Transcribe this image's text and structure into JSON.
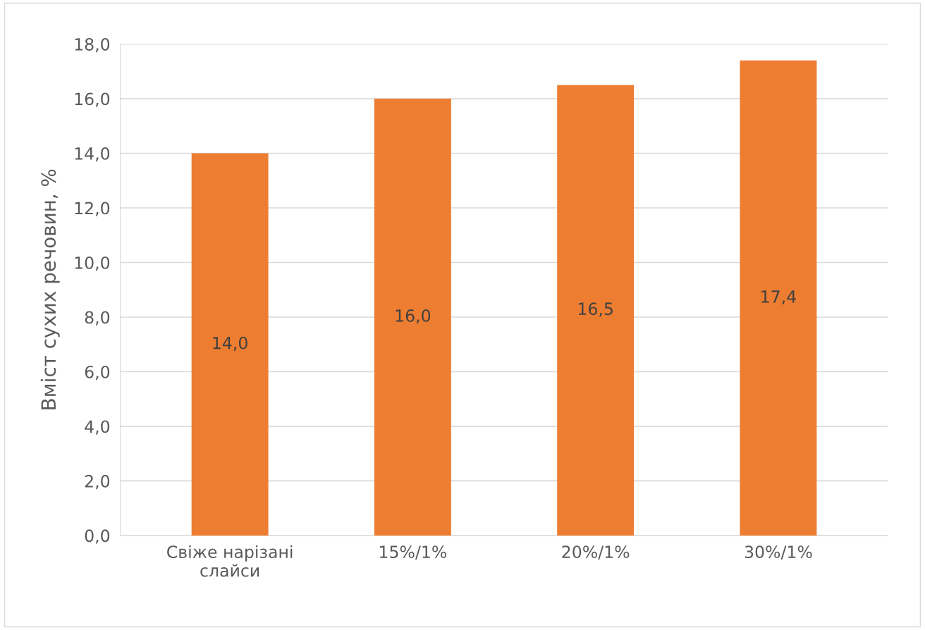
{
  "chart_data": {
    "type": "bar",
    "ylabel": "Вміст сухих речовин, %",
    "categories": [
      "Свіже нарізані\nслайси",
      "15%/1%",
      "20%/1%",
      "30%/1%"
    ],
    "values": [
      14.0,
      16.0,
      16.5,
      17.4
    ],
    "value_labels": [
      "14,0",
      "16,0",
      "16,5",
      "17,4"
    ],
    "color": "#ed7d31",
    "ylim": [
      0,
      18
    ],
    "yticks": [
      {
        "value": 0,
        "label": "0,0"
      },
      {
        "value": 2,
        "label": "2,0"
      },
      {
        "value": 4,
        "label": "4,0"
      },
      {
        "value": 6,
        "label": "6,0"
      },
      {
        "value": 8,
        "label": "8,0"
      },
      {
        "value": 10,
        "label": "10,0"
      },
      {
        "value": 12,
        "label": "12,0"
      },
      {
        "value": 14,
        "label": "14,0"
      },
      {
        "value": 16,
        "label": "16,0"
      },
      {
        "value": 18,
        "label": "18,0"
      }
    ],
    "grid": "y"
  }
}
